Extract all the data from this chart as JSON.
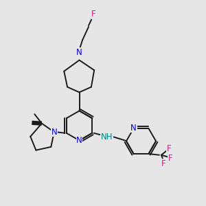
{
  "bg_color": "#e6e6e6",
  "bond_color": "#1a1a1a",
  "N_color": "#0000ee",
  "F_color": "#ee1199",
  "H_color": "#008888",
  "line_width": 1.4,
  "font_size": 8.5,
  "fig_w": 3.0,
  "fig_h": 3.0,
  "dpi": 100,
  "xlim": [
    0,
    10
  ],
  "ylim": [
    0,
    10
  ]
}
